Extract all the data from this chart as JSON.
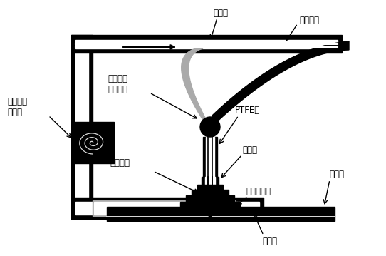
{
  "bg_color": "#ffffff",
  "black": "#000000",
  "gray": "#aaaaaa",
  "dark": "#333333",
  "labels": {
    "air_tube_top": "导气管",
    "filament": "打印丝材",
    "stepper": "步进电机\n驱动滚轴",
    "ptfe": "PTFE管",
    "heating": "加热层",
    "print_head": "打印针头",
    "smart_struct": "智能结构件",
    "stage": "载物台",
    "air_tube_bot": "导气管",
    "pump": "智能控温\n空气泵"
  },
  "figsize": [
    5.42,
    3.59
  ],
  "dpi": 100
}
